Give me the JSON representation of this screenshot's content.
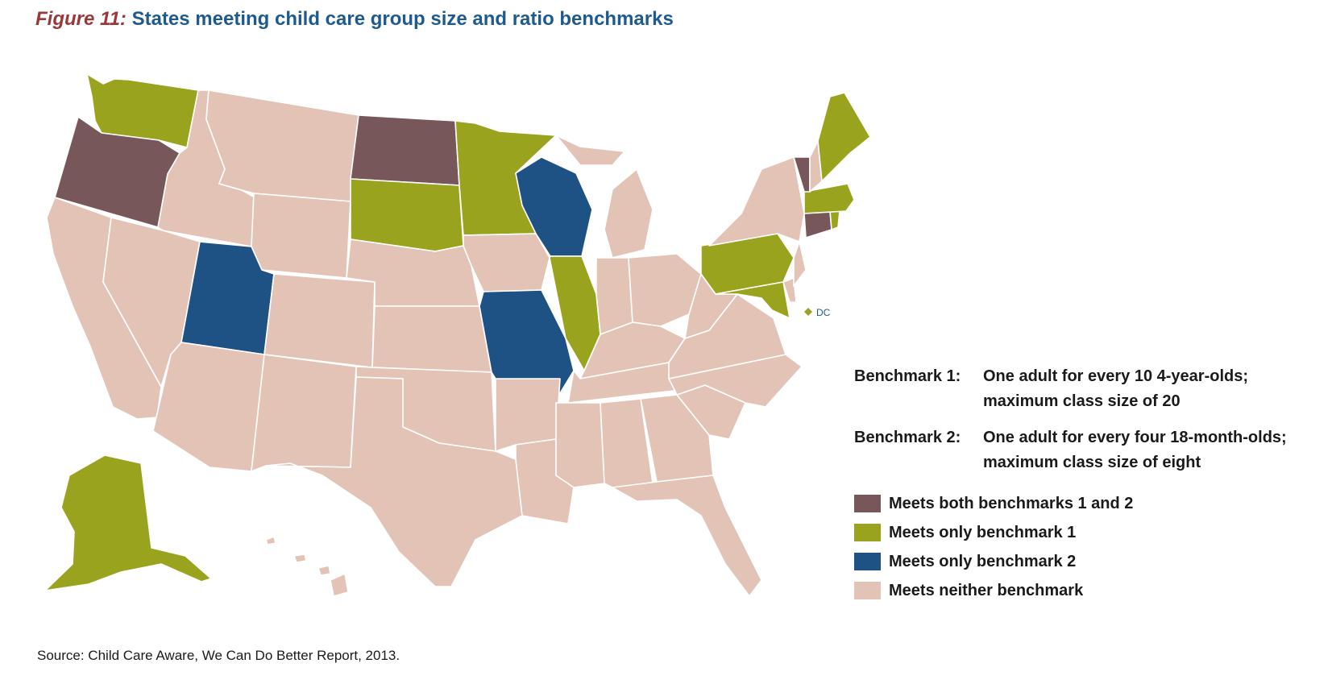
{
  "title": {
    "figure_label": "Figure 11:",
    "text": "States meeting child care group size and ratio benchmarks"
  },
  "benchmarks": [
    {
      "label": "Benchmark 1:",
      "line1": "One adult for every 10 4-year-olds;",
      "line2": "maximum class size of 20"
    },
    {
      "label": "Benchmark 2:",
      "line1": "One adult for every four 18-month-olds;",
      "line2": "maximum class size of eight"
    }
  ],
  "legend": [
    {
      "label": "Meets both benchmarks 1 and 2",
      "color": "#78575a"
    },
    {
      "label": "Meets only benchmark 1",
      "color": "#9aa31e"
    },
    {
      "label": "Meets only benchmark 2",
      "color": "#1e5284"
    },
    {
      "label": "Meets neither benchmark",
      "color": "#e2c3b6"
    }
  ],
  "map_data": {
    "dc_label": "DC",
    "categories": {
      "both": [
        "Oregon",
        "North Dakota",
        "Vermont",
        "Connecticut"
      ],
      "only_1": [
        "Washington",
        "Alaska",
        "South Dakota",
        "Minnesota",
        "Illinois",
        "Pennsylvania",
        "Maine",
        "Massachusetts",
        "Rhode Island",
        "Maryland",
        "District of Columbia"
      ],
      "only_2": [
        "Utah",
        "Wisconsin",
        "Missouri"
      ]
    }
  },
  "source": "Source: Child Care Aware, We Can Do Better Report, 2013."
}
